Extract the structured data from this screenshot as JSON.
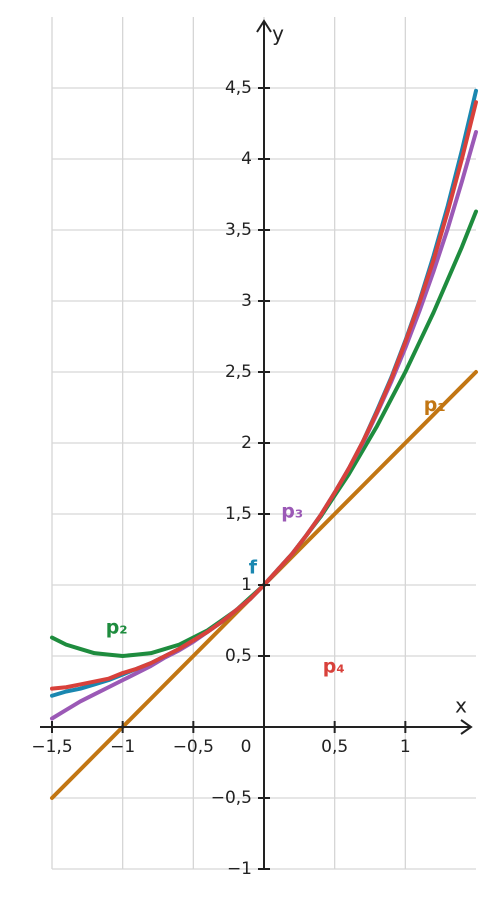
{
  "chart_data": {
    "type": "line",
    "x_label": "x",
    "y_label": "y",
    "x": [
      -1.5,
      -1.4,
      -1.3,
      -1.2,
      -1.1,
      -1.0,
      -0.9,
      -0.8,
      -0.7,
      -0.6,
      -0.5,
      -0.4,
      -0.3,
      -0.2,
      -0.1,
      0,
      0.1,
      0.2,
      0.3,
      0.4,
      0.5,
      0.6,
      0.7,
      0.8,
      0.9,
      1.0,
      1.1,
      1.2,
      1.3,
      1.4,
      1.5
    ],
    "series": [
      {
        "name": "p₁",
        "color": "#c27613",
        "values": [
          -0.5,
          -0.4,
          -0.3,
          -0.2,
          -0.1,
          0,
          0.1,
          0.2,
          0.3,
          0.4,
          0.5,
          0.6,
          0.7,
          0.8,
          0.9,
          1,
          1.1,
          1.2,
          1.3,
          1.4,
          1.5,
          1.6,
          1.7,
          1.8,
          1.9,
          2.0,
          2.1,
          2.2,
          2.3,
          2.4,
          2.5
        ]
      },
      {
        "name": "p₂",
        "color": "#1e8c3e",
        "values": [
          0.63,
          0.58,
          0.55,
          0.52,
          0.51,
          0.5,
          0.51,
          0.52,
          0.55,
          0.58,
          0.63,
          0.68,
          0.75,
          0.82,
          0.91,
          1,
          1.11,
          1.22,
          1.35,
          1.48,
          1.63,
          1.78,
          1.95,
          2.12,
          2.31,
          2.5,
          2.71,
          2.92,
          3.15,
          3.38,
          3.63
        ]
      },
      {
        "name": "p₃",
        "color": "#9b59b6",
        "values": [
          0.06,
          0.12,
          0.18,
          0.23,
          0.28,
          0.33,
          0.38,
          0.43,
          0.49,
          0.54,
          0.6,
          0.67,
          0.74,
          0.82,
          0.9,
          1,
          1.11,
          1.22,
          1.35,
          1.49,
          1.65,
          1.82,
          2.0,
          2.21,
          2.43,
          2.67,
          2.93,
          3.21,
          3.51,
          3.84,
          4.19
        ]
      },
      {
        "name": "f",
        "color": "#1a87b0",
        "values": [
          0.22,
          0.25,
          0.27,
          0.3,
          0.33,
          0.37,
          0.41,
          0.45,
          0.5,
          0.55,
          0.61,
          0.67,
          0.74,
          0.82,
          0.9,
          1,
          1.11,
          1.22,
          1.35,
          1.49,
          1.65,
          1.82,
          2.01,
          2.23,
          2.46,
          2.72,
          3.0,
          3.32,
          3.67,
          4.06,
          4.48
        ]
      },
      {
        "name": "p₄",
        "color": "#d8413b",
        "values": [
          0.27,
          0.28,
          0.3,
          0.32,
          0.34,
          0.38,
          0.41,
          0.45,
          0.5,
          0.55,
          0.61,
          0.67,
          0.74,
          0.82,
          0.9,
          1,
          1.11,
          1.22,
          1.35,
          1.49,
          1.65,
          1.82,
          2.01,
          2.22,
          2.45,
          2.71,
          2.99,
          3.29,
          3.63,
          4.0,
          4.4
        ]
      }
    ],
    "xlim": [
      -1.5,
      1.5
    ],
    "ylim": [
      -1,
      5
    ],
    "xticks": [
      {
        "value": -1.5,
        "label": "−1,5"
      },
      {
        "value": -1,
        "label": "−1"
      },
      {
        "value": -0.5,
        "label": "−0,5"
      },
      0,
      {
        "value": 0.5,
        "label": "0,5"
      },
      1
    ],
    "yticks": [
      {
        "value": -1,
        "label": "−1"
      },
      {
        "value": -0.5,
        "label": "−0,5"
      },
      {
        "value": 0.5,
        "label": "0,5"
      },
      1,
      {
        "value": 1.5,
        "label": "1,5"
      },
      2,
      {
        "value": 2.5,
        "label": "2,5"
      },
      3,
      {
        "value": 3.5,
        "label": "3,5"
      },
      4,
      {
        "value": 4.5,
        "label": "4,5"
      }
    ],
    "grid": true
  }
}
